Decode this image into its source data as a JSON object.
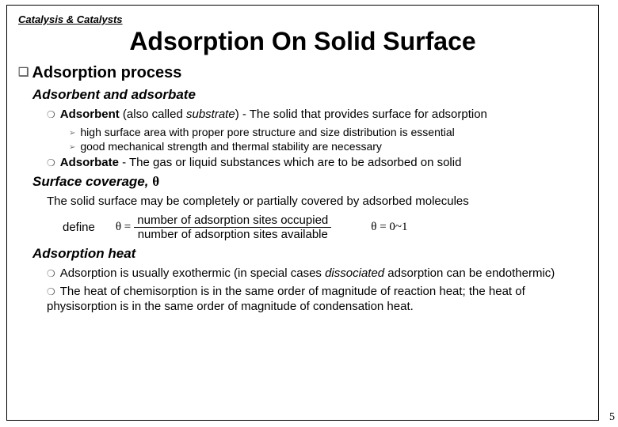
{
  "header": "Catalysis & Catalysts",
  "title": "Adsorption On Solid Surface",
  "section1": {
    "heading": "Adsorption process",
    "sub1": {
      "heading": "Adsorbent and adsorbate",
      "item1": {
        "term": "Adsorbent",
        "alt": " (also called ",
        "alt_em": "substrate",
        "rest": ") - The solid that provides surface for adsorption",
        "sub_a": "high surface area with proper pore structure and size distribution is essential",
        "sub_b": "good mechanical strength and thermal stability are necessary"
      },
      "item2": {
        "term": "Adsorbate",
        "rest": " - The gas or liquid substances which are to be adsorbed on solid"
      }
    },
    "sub2": {
      "heading_pre": "Surface coverage, ",
      "heading_sym": "θ",
      "body": "The solid surface may be completely or partially covered by adsorbed molecules",
      "define": "define",
      "eq_left": "θ =",
      "numerator": "number of adsorption sites occupied",
      "denominator": "number of adsorption sites available",
      "range": "θ = 0~1"
    },
    "sub3": {
      "heading": "Adsorption heat",
      "item1_a": "Adsorption is usually exothermic (in special cases ",
      "item1_em": "dissociated",
      "item1_b": " adsorption can be endothermic)",
      "item2": "The heat of chemisorption is in the same order of magnitude of reaction heat; the heat of physisorption is in the same order of magnitude of condensation heat."
    }
  },
  "page_number": "5"
}
